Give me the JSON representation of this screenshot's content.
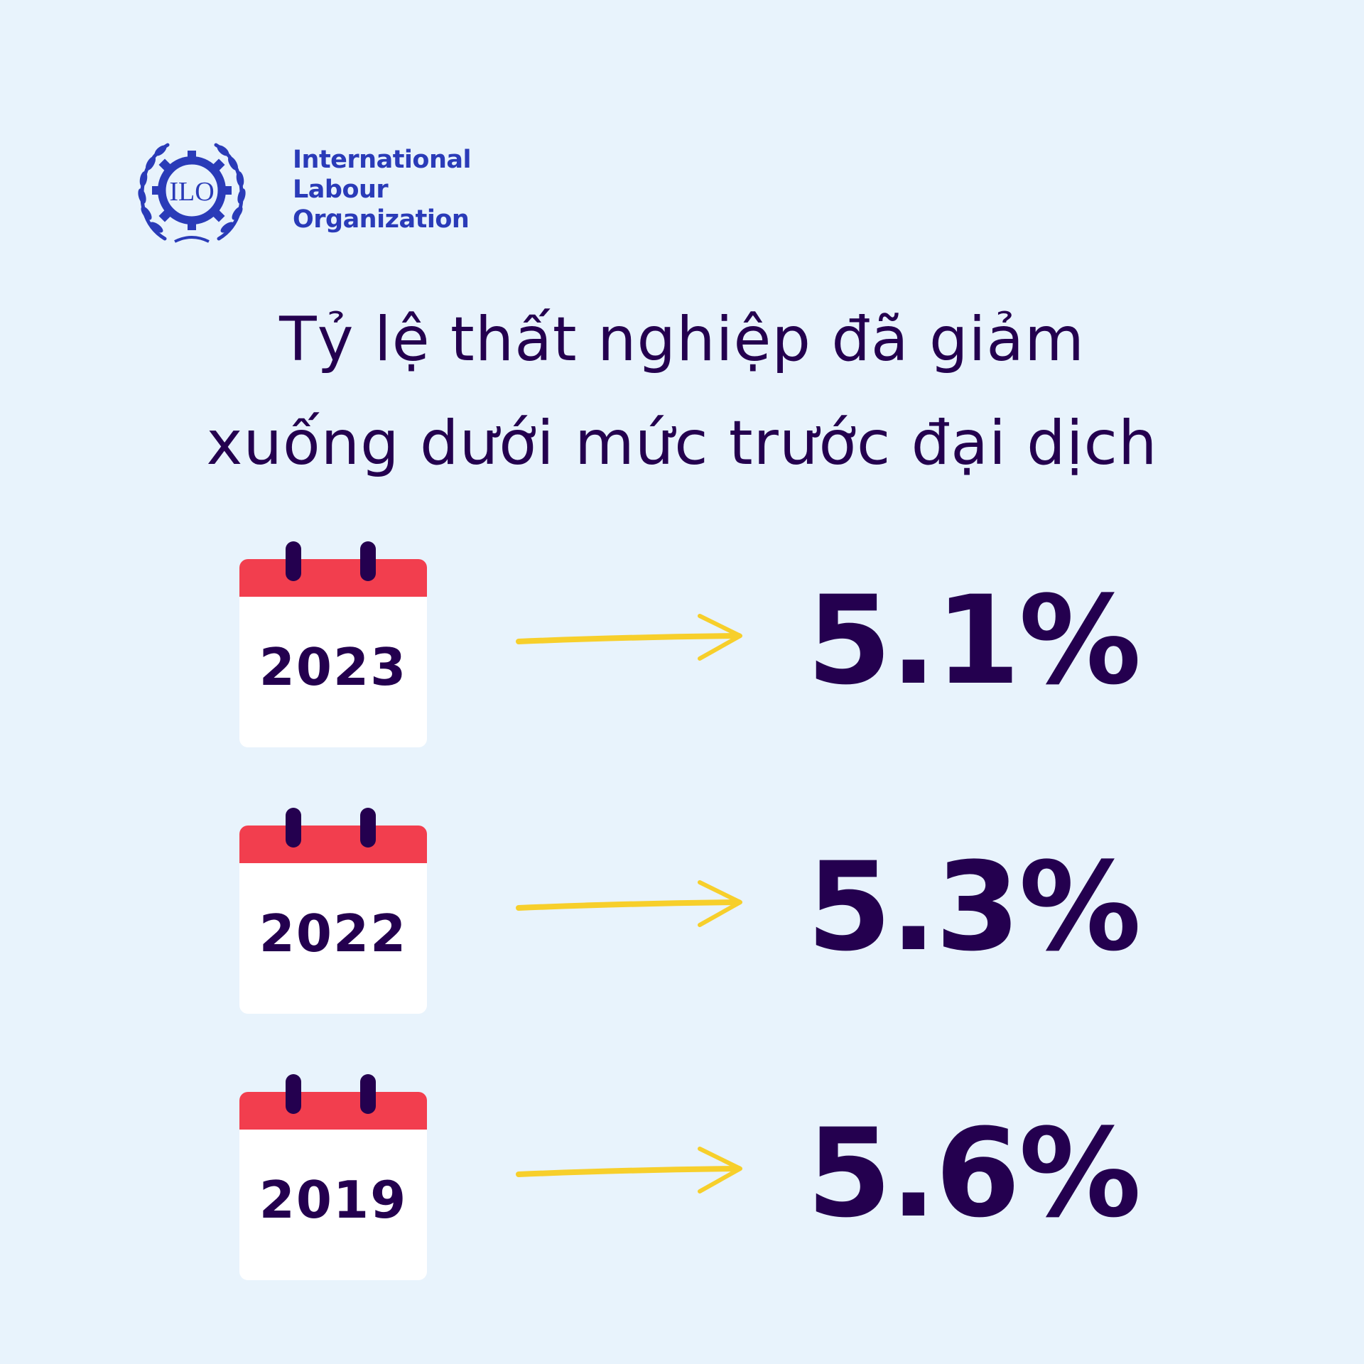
{
  "logo": {
    "lines": [
      "International",
      "Labour",
      "Organization"
    ],
    "emblem_text": "ILO",
    "color": "#2a3bb8"
  },
  "headline": {
    "line1": "Tỷ lệ thất nghiệp đã giảm",
    "line2": "xuống dưới mức trước đại dịch"
  },
  "rows": [
    {
      "year": "2023",
      "value": "5.1%"
    },
    {
      "year": "2022",
      "value": "5.3%"
    },
    {
      "year": "2019",
      "value": "5.6%"
    }
  ],
  "colors": {
    "background": "#e8f3fc",
    "text": "#24004f",
    "calendar_top": "#f23e4e",
    "arrow": "#f7cf2b"
  }
}
